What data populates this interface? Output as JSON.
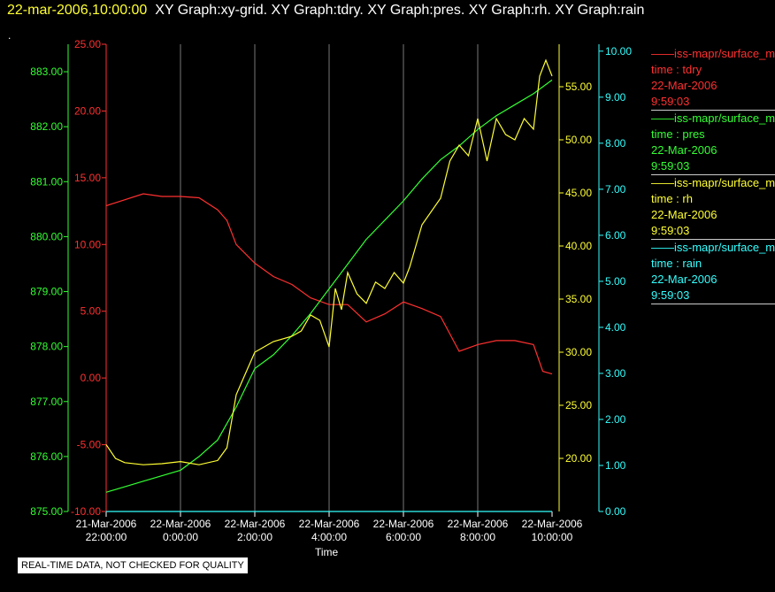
{
  "header": {
    "timestamp": "22-mar-2006,10:00:00",
    "graphs": "XY Graph:xy-grid.  XY Graph:tdry.  XY Graph:pres.  XY Graph:rh.  XY Graph:rain",
    "dot": "."
  },
  "footer": {
    "quality_notice": "REAL-TIME DATA, NOT CHECKED FOR QUALITY"
  },
  "legend": [
    {
      "name": "iss-mapr/surface_m",
      "var": "time : tdry",
      "date": "22-Mar-2006",
      "time": "9:59:03",
      "color": "#ff3030"
    },
    {
      "name": "iss-mapr/surface_m",
      "var": "time : pres",
      "date": "22-Mar-2006",
      "time": "9:59:03",
      "color": "#33ff33"
    },
    {
      "name": "iss-mapr/surface_m",
      "var": "time : rh",
      "date": "22-Mar-2006",
      "time": "9:59:03",
      "color": "#ffff33"
    },
    {
      "name": "iss-mapr/surface_m",
      "var": "time : rain",
      "date": "22-Mar-2006",
      "time": "9:59:03",
      "color": "#33ffff"
    }
  ],
  "chart_data": {
    "type": "line",
    "xlabel": "Time",
    "x_ticks": [
      {
        "date": "21-Mar-2006",
        "time": "22:00:00"
      },
      {
        "date": "22-Mar-2006",
        "time": "0:00:00"
      },
      {
        "date": "22-Mar-2006",
        "time": "2:00:00"
      },
      {
        "date": "22-Mar-2006",
        "time": "4:00:00"
      },
      {
        "date": "22-Mar-2006",
        "time": "6:00:00"
      },
      {
        "date": "22-Mar-2006",
        "time": "8:00:00"
      },
      {
        "date": "22-Mar-2006",
        "time": "10:00:00"
      }
    ],
    "xlim": [
      "21-Mar-2006 22:00",
      "22-Mar-2006 10:00"
    ],
    "grid": "vertical",
    "axes": [
      {
        "id": "pres",
        "color": "#33ff33",
        "ylim": [
          875,
          883.5
        ],
        "ticks": [
          "875.00",
          "876.00",
          "877.00",
          "878.00",
          "879.00",
          "880.00",
          "881.00",
          "882.00",
          "883.00"
        ]
      },
      {
        "id": "tdry",
        "color": "#ff3030",
        "ylim": [
          -10,
          25
        ],
        "ticks": [
          "-10.00",
          "-5.00",
          "0.00",
          "5.00",
          "10.00",
          "15.00",
          "20.00",
          "25.00"
        ]
      },
      {
        "id": "rh",
        "color": "#ffff33",
        "ylim": [
          15,
          59
        ],
        "ticks": [
          "20.00",
          "25.00",
          "30.00",
          "35.00",
          "40.00",
          "45.00",
          "50.00",
          "55.00"
        ]
      },
      {
        "id": "rain",
        "color": "#33ffff",
        "ylim": [
          0,
          10.15
        ],
        "ticks": [
          "0.00",
          "1.00",
          "2.00",
          "3.00",
          "4.00",
          "5.00",
          "6.00",
          "7.00",
          "8.00",
          "9.00",
          "10.00"
        ]
      }
    ],
    "series": [
      {
        "axis": "tdry",
        "color": "#ff3030",
        "x": [
          "21-Mar-2006 22:00",
          "21-Mar-2006 23:00",
          "21-Mar-2006 23:30",
          "22-Mar-2006 00:00",
          "22-Mar-2006 00:30",
          "22-Mar-2006 01:00",
          "22-Mar-2006 01:15",
          "22-Mar-2006 01:30",
          "22-Mar-2006 02:00",
          "22-Mar-2006 02:30",
          "22-Mar-2006 03:00",
          "22-Mar-2006 03:30",
          "22-Mar-2006 04:00",
          "22-Mar-2006 04:30",
          "22-Mar-2006 05:00",
          "22-Mar-2006 05:30",
          "22-Mar-2006 06:00",
          "22-Mar-2006 06:30",
          "22-Mar-2006 07:00",
          "22-Mar-2006 07:30",
          "22-Mar-2006 08:00",
          "22-Mar-2006 08:30",
          "22-Mar-2006 09:00",
          "22-Mar-2006 09:30",
          "22-Mar-2006 09:45",
          "22-Mar-2006 10:00"
        ],
        "y": [
          12.9,
          13.8,
          13.6,
          13.6,
          13.5,
          12.6,
          11.8,
          10.0,
          8.6,
          7.6,
          7.0,
          6.0,
          5.5,
          5.5,
          4.2,
          4.8,
          5.7,
          5.2,
          4.6,
          2.0,
          2.5,
          2.8,
          2.8,
          2.5,
          0.5,
          0.3
        ]
      },
      {
        "axis": "pres",
        "color": "#33ff33",
        "x": [
          "21-Mar-2006 22:00",
          "21-Mar-2006 23:00",
          "22-Mar-2006 00:00",
          "22-Mar-2006 00:30",
          "22-Mar-2006 01:00",
          "22-Mar-2006 01:30",
          "22-Mar-2006 02:00",
          "22-Mar-2006 02:30",
          "22-Mar-2006 03:00",
          "22-Mar-2006 03:30",
          "22-Mar-2006 04:00",
          "22-Mar-2006 04:30",
          "22-Mar-2006 05:00",
          "22-Mar-2006 05:30",
          "22-Mar-2006 06:00",
          "22-Mar-2006 06:30",
          "22-Mar-2006 07:00",
          "22-Mar-2006 07:30",
          "22-Mar-2006 08:00",
          "22-Mar-2006 08:30",
          "22-Mar-2006 09:00",
          "22-Mar-2006 09:30",
          "22-Mar-2006 10:00"
        ],
        "y": [
          875.35,
          875.55,
          875.75,
          876.0,
          876.3,
          876.9,
          877.6,
          877.85,
          878.2,
          878.6,
          879.05,
          879.5,
          879.95,
          880.3,
          880.65,
          881.05,
          881.4,
          881.65,
          881.95,
          882.2,
          882.4,
          882.6,
          882.85
        ]
      },
      {
        "axis": "rh",
        "color": "#ffff33",
        "x": [
          "21-Mar-2006 22:00",
          "21-Mar-2006 22:15",
          "21-Mar-2006 22:30",
          "21-Mar-2006 23:00",
          "21-Mar-2006 23:30",
          "22-Mar-2006 00:00",
          "22-Mar-2006 00:30",
          "22-Mar-2006 01:00",
          "22-Mar-2006 01:15",
          "22-Mar-2006 01:30",
          "22-Mar-2006 01:45",
          "22-Mar-2006 02:00",
          "22-Mar-2006 02:15",
          "22-Mar-2006 02:30",
          "22-Mar-2006 03:00",
          "22-Mar-2006 03:15",
          "22-Mar-2006 03:30",
          "22-Mar-2006 03:45",
          "22-Mar-2006 04:00",
          "22-Mar-2006 04:10",
          "22-Mar-2006 04:20",
          "22-Mar-2006 04:30",
          "22-Mar-2006 04:45",
          "22-Mar-2006 05:00",
          "22-Mar-2006 05:15",
          "22-Mar-2006 05:30",
          "22-Mar-2006 05:45",
          "22-Mar-2006 06:00",
          "22-Mar-2006 06:10",
          "22-Mar-2006 06:20",
          "22-Mar-2006 06:30",
          "22-Mar-2006 07:00",
          "22-Mar-2006 07:15",
          "22-Mar-2006 07:30",
          "22-Mar-2006 07:45",
          "22-Mar-2006 08:00",
          "22-Mar-2006 08:15",
          "22-Mar-2006 08:30",
          "22-Mar-2006 08:45",
          "22-Mar-2006 09:00",
          "22-Mar-2006 09:15",
          "22-Mar-2006 09:30",
          "22-Mar-2006 09:40",
          "22-Mar-2006 09:50",
          "22-Mar-2006 10:00"
        ],
        "y": [
          21.3,
          20.0,
          19.6,
          19.4,
          19.5,
          19.7,
          19.4,
          19.8,
          21.0,
          26.0,
          28.0,
          30.0,
          30.5,
          31.0,
          31.5,
          32.0,
          33.5,
          33.0,
          30.5,
          36.0,
          34.0,
          37.5,
          35.5,
          34.6,
          36.6,
          36.0,
          37.5,
          36.5,
          38.0,
          40.0,
          42.0,
          44.5,
          48.0,
          49.5,
          48.5,
          52.0,
          48.0,
          52.0,
          50.5,
          50.0,
          52.0,
          51.0,
          56.0,
          57.5,
          56.0
        ]
      },
      {
        "axis": "rain",
        "color": "#33ffff",
        "x": [
          "21-Mar-2006 22:00",
          "22-Mar-2006 10:00"
        ],
        "y": [
          0.0,
          0.0
        ]
      }
    ]
  }
}
